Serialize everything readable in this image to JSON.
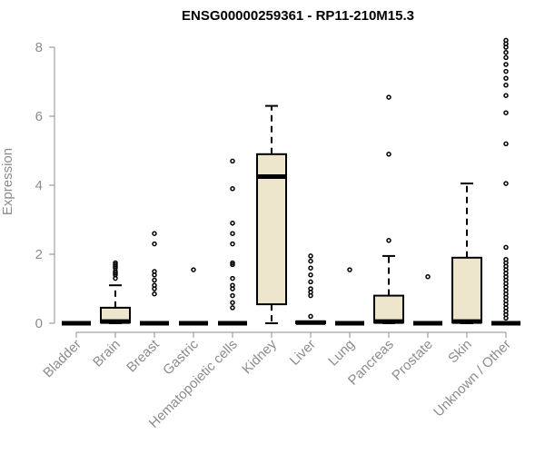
{
  "chart_data": {
    "type": "boxplot",
    "title": "ENSG00000259361 - RP11-210M15.3",
    "xlabel": "",
    "ylabel": "Expression",
    "ylim": [
      0,
      8
    ],
    "yticks": [
      0,
      2,
      4,
      6,
      8
    ],
    "colors": {
      "box_fill": "#ede6cc",
      "stroke": "#000000",
      "axis": "#8c8c8c"
    },
    "categories": [
      "Bladder",
      "Brain",
      "Breast",
      "Gastric",
      "Hematopoietic cells",
      "Kidney",
      "Liver",
      "Lung",
      "Pancreas",
      "Prostate",
      "Skin",
      "Unknown / Other"
    ],
    "boxes": [
      {
        "category": "Bladder",
        "min": 0,
        "q1": 0,
        "median": 0,
        "q3": 0,
        "max": 0,
        "outliers": []
      },
      {
        "category": "Brain",
        "min": 0,
        "q1": 0.02,
        "median": 0.05,
        "q3": 0.45,
        "max": 1.1,
        "outliers": [
          1.3,
          1.4,
          1.45,
          1.5,
          1.6,
          1.65,
          1.7,
          1.75
        ]
      },
      {
        "category": "Breast",
        "min": 0,
        "q1": 0,
        "median": 0,
        "q3": 0,
        "max": 0,
        "outliers": [
          0.85,
          1.0,
          1.1,
          1.25,
          1.4,
          1.5,
          2.3,
          2.6
        ]
      },
      {
        "category": "Gastric",
        "min": 0,
        "q1": 0,
        "median": 0,
        "q3": 0,
        "max": 0,
        "outliers": [
          1.55
        ]
      },
      {
        "category": "Hematopoietic cells",
        "min": 0,
        "q1": 0,
        "median": 0,
        "q3": 0,
        "max": 0,
        "outliers": [
          0.45,
          0.6,
          0.8,
          1.0,
          1.1,
          1.3,
          1.7,
          1.75,
          2.3,
          2.6,
          2.9,
          3.9,
          4.7
        ]
      },
      {
        "category": "Kidney",
        "min": 0,
        "q1": 0.55,
        "median": 4.25,
        "q3": 4.9,
        "max": 6.3,
        "outliers": []
      },
      {
        "category": "Liver",
        "min": 0,
        "q1": 0,
        "median": 0.02,
        "q3": 0.05,
        "max": 0.05,
        "outliers": [
          0.2,
          0.8,
          0.9,
          1.0,
          1.2,
          1.4,
          1.6,
          1.8,
          1.95
        ]
      },
      {
        "category": "Lung",
        "min": 0,
        "q1": 0,
        "median": 0,
        "q3": 0,
        "max": 0,
        "outliers": [
          1.55
        ]
      },
      {
        "category": "Pancreas",
        "min": 0,
        "q1": 0.02,
        "median": 0.05,
        "q3": 0.8,
        "max": 1.95,
        "outliers": [
          2.4,
          4.9,
          6.55
        ]
      },
      {
        "category": "Prostate",
        "min": 0,
        "q1": 0,
        "median": 0,
        "q3": 0,
        "max": 0,
        "outliers": [
          1.35
        ]
      },
      {
        "category": "Skin",
        "min": 0,
        "q1": 0.02,
        "median": 0.05,
        "q3": 1.9,
        "max": 4.05,
        "outliers": []
      },
      {
        "category": "Unknown / Other",
        "min": 0,
        "q1": 0,
        "median": 0,
        "q3": 0,
        "max": 0,
        "outliers": [
          0.15,
          0.25,
          0.35,
          0.45,
          0.55,
          0.65,
          0.75,
          0.85,
          0.95,
          1.05,
          1.15,
          1.25,
          1.35,
          1.45,
          1.55,
          1.65,
          1.75,
          1.85,
          2.2,
          4.05,
          5.2,
          6.1,
          6.6,
          6.9,
          7.1,
          7.3,
          7.5,
          7.7,
          7.85,
          8.0,
          8.1,
          8.2
        ]
      }
    ]
  }
}
